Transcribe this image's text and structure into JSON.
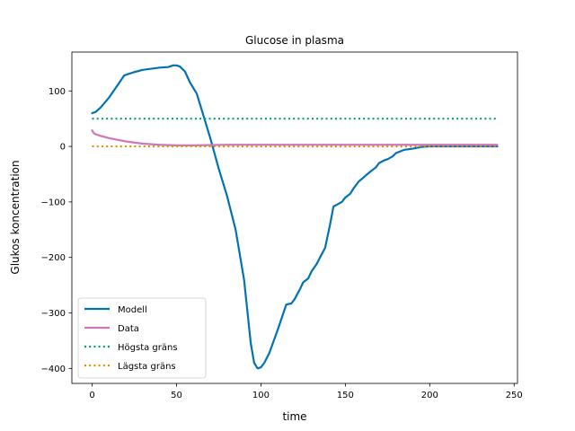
{
  "chart_data": {
    "type": "line",
    "title": "Glucose in plasma",
    "xlabel": "time",
    "ylabel": "Glukos koncentration",
    "xlim": [
      -12,
      252
    ],
    "ylim": [
      -427,
      170
    ],
    "xticks": [
      0,
      50,
      100,
      150,
      200,
      250
    ],
    "yticks": [
      -400,
      -300,
      -200,
      -100,
      0,
      100
    ],
    "grid": false,
    "legend_position": "lower-left",
    "series": [
      {
        "name": "Modell",
        "color": "#0173b2",
        "style": "solid",
        "x": [
          0,
          2,
          5,
          10,
          15,
          19,
          25,
          30,
          35,
          40,
          45,
          48,
          50,
          52,
          55,
          58,
          62,
          66,
          70,
          75,
          80,
          85,
          90,
          94,
          96,
          98,
          100,
          102,
          105,
          110,
          115,
          118,
          120,
          123,
          125,
          128,
          130,
          133,
          135,
          138,
          141,
          143,
          145,
          148,
          150,
          153,
          155,
          158,
          160,
          163,
          165,
          168,
          170,
          173,
          175,
          178,
          180,
          185,
          190,
          195,
          200,
          210,
          220,
          230,
          240
        ],
        "y": [
          60,
          62,
          70,
          88,
          110,
          128,
          134,
          138,
          140,
          142,
          143,
          146,
          146,
          144,
          135,
          115,
          95,
          55,
          15,
          -40,
          -90,
          -150,
          -240,
          -355,
          -390,
          -400,
          -398,
          -390,
          -372,
          -330,
          -285,
          -283,
          -275,
          -258,
          -245,
          -238,
          -225,
          -212,
          -200,
          -183,
          -140,
          -108,
          -105,
          -100,
          -92,
          -85,
          -75,
          -63,
          -58,
          -50,
          -45,
          -38,
          -30,
          -25,
          -23,
          -18,
          -12,
          -6,
          -4,
          -1,
          0,
          0,
          0,
          0,
          0
        ]
      },
      {
        "name": "Data",
        "color": "#cc78bc",
        "style": "solid",
        "x": [
          0,
          1,
          2,
          5,
          10,
          15,
          20,
          30,
          40,
          50,
          60,
          80,
          100,
          120,
          150,
          200,
          240
        ],
        "y": [
          29,
          24,
          22,
          19,
          15,
          12,
          9,
          5,
          3,
          2,
          2,
          3,
          3,
          3,
          3,
          3,
          3
        ]
      },
      {
        "name": "Högsta gräns",
        "color": "#029e73",
        "style": "dotted",
        "x": [
          0,
          240
        ],
        "y": [
          50,
          50
        ]
      },
      {
        "name": "Lägsta gräns",
        "color": "#de8f05",
        "style": "dotted",
        "x": [
          0,
          240
        ],
        "y": [
          0,
          0
        ]
      }
    ]
  }
}
